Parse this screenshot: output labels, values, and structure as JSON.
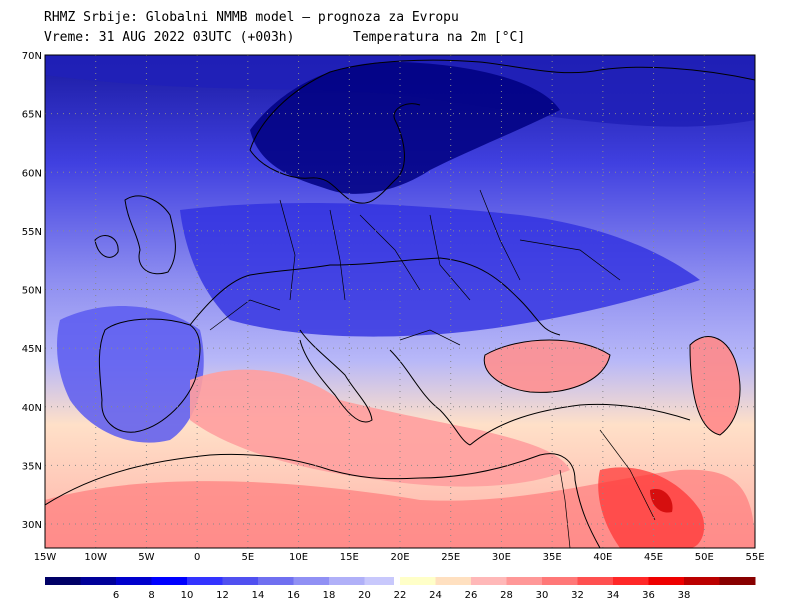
{
  "header": {
    "line1": "RHMZ Srbije: Globalni NMMB model – prognoza za Evropu",
    "line2_left": "Vreme: 31 AUG 2022 03UTC (+003h)",
    "line2_right": "Temperatura na 2m [°C]"
  },
  "axes": {
    "lat_labels": [
      "70N",
      "65N",
      "60N",
      "55N",
      "50N",
      "45N",
      "40N",
      "35N",
      "30N"
    ],
    "lon_labels": [
      "15W",
      "10W",
      "5W",
      "0",
      "5E",
      "10E",
      "15E",
      "20E",
      "25E",
      "30E",
      "35E",
      "40E",
      "45E",
      "50E",
      "55E"
    ]
  },
  "colorbar": {
    "colors": [
      "#000066",
      "#000099",
      "#0000cc",
      "#0000ff",
      "#3333ff",
      "#5050f0",
      "#7070f0",
      "#9090f4",
      "#b0b0f8",
      "#c8c8fc",
      "#ffffc8",
      "#ffe0c0",
      "#ffb8b8",
      "#ff9898",
      "#ff7878",
      "#ff5050",
      "#ff2828",
      "#ee0000",
      "#bb0000",
      "#880000"
    ],
    "ticks": [
      "6",
      "8",
      "10",
      "12",
      "14",
      "16",
      "18",
      "20",
      "22",
      "24",
      "26",
      "28",
      "30",
      "32",
      "34",
      "36",
      "38"
    ]
  }
}
